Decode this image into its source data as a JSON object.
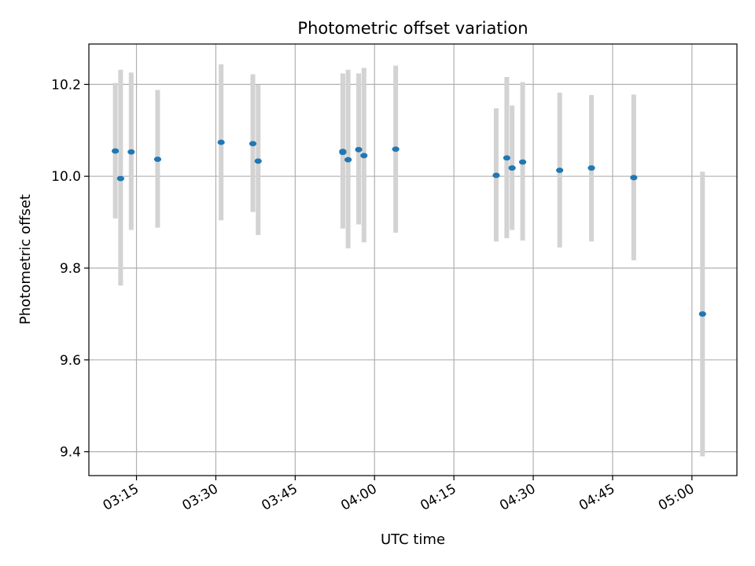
{
  "chart_data": {
    "type": "scatter",
    "title": "Photometric offset variation",
    "xlabel": "UTC time",
    "ylabel": "Photometric offset",
    "x_ticks": [
      "03:15",
      "03:30",
      "03:45",
      "04:00",
      "04:15",
      "04:30",
      "04:45",
      "05:00"
    ],
    "x_tick_minutes": [
      195,
      210,
      225,
      240,
      255,
      270,
      285,
      300
    ],
    "y_ticks": [
      "9.4",
      "9.6",
      "9.8",
      "10.0",
      "10.2"
    ],
    "y_tick_values": [
      9.4,
      9.6,
      9.8,
      10.0,
      10.2
    ],
    "xlim_minutes": [
      186,
      308.5
    ],
    "ylim": [
      9.348,
      10.288
    ],
    "grid": true,
    "point_color": "#1f77b4",
    "errorbar_color": "#d3d3d3",
    "series": [
      {
        "points": [
          {
            "t": "03:11",
            "y": 10.055,
            "low": 9.908,
            "high": 10.203
          },
          {
            "t": "03:12",
            "y": 9.995,
            "low": 9.762,
            "high": 10.232
          },
          {
            "t": "03:14",
            "y": 10.053,
            "low": 9.883,
            "high": 10.226
          },
          {
            "t": "03:19",
            "y": 10.037,
            "low": 9.888,
            "high": 10.188
          },
          {
            "t": "03:31",
            "y": 10.074,
            "low": 9.904,
            "high": 10.244
          },
          {
            "t": "03:37",
            "y": 10.071,
            "low": 9.922,
            "high": 10.222
          },
          {
            "t": "03:38",
            "y": 10.033,
            "low": 9.872,
            "high": 10.199
          },
          {
            "t": "03:54",
            "y": 10.052,
            "low": 9.886,
            "high": 10.224
          },
          {
            "t": "03:54",
            "y": 10.054,
            "low": 9.89,
            "high": 10.218
          },
          {
            "t": "03:55",
            "y": 10.036,
            "low": 9.843,
            "high": 10.232
          },
          {
            "t": "03:57",
            "y": 10.058,
            "low": 9.895,
            "high": 10.224
          },
          {
            "t": "03:58",
            "y": 10.045,
            "low": 9.856,
            "high": 10.236
          },
          {
            "t": "04:04",
            "y": 10.059,
            "low": 9.877,
            "high": 10.241
          },
          {
            "t": "04:23",
            "y": 10.002,
            "low": 9.858,
            "high": 10.148
          },
          {
            "t": "04:25",
            "y": 10.04,
            "low": 9.865,
            "high": 10.216
          },
          {
            "t": "04:26",
            "y": 10.018,
            "low": 9.883,
            "high": 10.154
          },
          {
            "t": "04:28",
            "y": 10.031,
            "low": 9.86,
            "high": 10.205
          },
          {
            "t": "04:35",
            "y": 10.013,
            "low": 9.845,
            "high": 10.182
          },
          {
            "t": "04:41",
            "y": 10.018,
            "low": 9.858,
            "high": 10.177
          },
          {
            "t": "04:49",
            "y": 9.997,
            "low": 9.817,
            "high": 10.178
          },
          {
            "t": "05:02",
            "y": 9.7,
            "low": 9.39,
            "high": 10.01
          }
        ]
      }
    ]
  }
}
